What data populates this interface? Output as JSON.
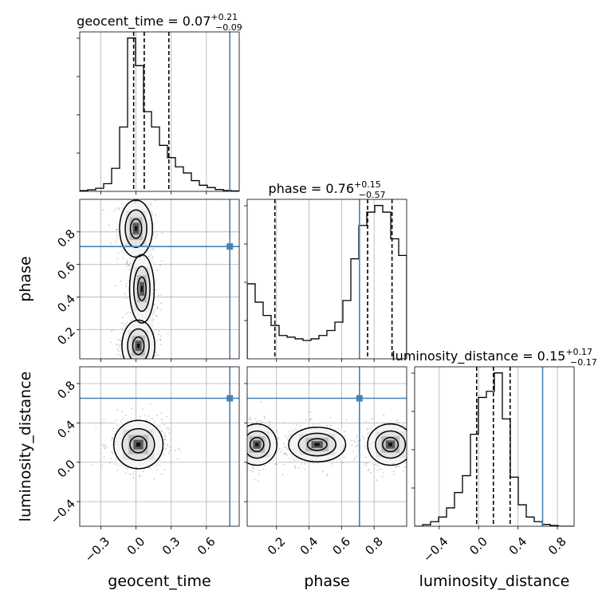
{
  "chart_data": {
    "type": "corner",
    "parameters": [
      "geocent_time",
      "phase",
      "luminosity_distance"
    ],
    "truths": {
      "geocent_time": 0.8,
      "phase": 0.71,
      "luminosity_distance": 0.65
    },
    "titles": {
      "geocent_time": {
        "name": "geocent_time",
        "median": "0.07",
        "plus": "+0.21",
        "minus": "−0.09"
      },
      "phase": {
        "name": "phase",
        "median": "0.76",
        "plus": "+0.15",
        "minus": "−0.57"
      },
      "luminosity_distance": {
        "name": "luminosity_distance",
        "median": "0.15",
        "plus": "+0.17",
        "minus": "−0.17"
      }
    },
    "axis_labels": {
      "x": [
        "geocent_time",
        "phase",
        "luminosity_distance"
      ],
      "y": [
        "phase",
        "luminosity_distance"
      ]
    },
    "ranges": {
      "geocent_time": [
        -0.48,
        0.88
      ],
      "phase": [
        0.02,
        1.0
      ],
      "luminosity_distance": [
        -0.65,
        0.97
      ]
    },
    "ticks": {
      "geocent_time": [
        "−0.3",
        "0.0",
        "0.3",
        "0.6"
      ],
      "phase": [
        "0.2",
        "0.4",
        "0.6",
        "0.8"
      ],
      "luminosity_distance": [
        "−0.4",
        "0.0",
        "0.4",
        "0.8"
      ]
    },
    "tick_values": {
      "geocent_time": [
        -0.3,
        0.0,
        0.3,
        0.6
      ],
      "phase": [
        0.2,
        0.4,
        0.6,
        0.8
      ],
      "luminosity_distance": [
        -0.4,
        0.0,
        0.4,
        0.8
      ]
    },
    "quantiles": {
      "geocent_time": [
        -0.02,
        0.07,
        0.28
      ],
      "phase": [
        0.19,
        0.76,
        0.91
      ],
      "luminosity_distance": [
        -0.02,
        0.15,
        0.32
      ]
    },
    "histograms": {
      "geocent_time": {
        "edges": [
          -0.48,
          -0.412,
          -0.344,
          -0.276,
          -0.208,
          -0.14,
          -0.072,
          -0.004,
          0.064,
          0.132,
          0.2,
          0.268,
          0.336,
          0.404,
          0.472,
          0.54,
          0.608,
          0.676,
          0.744,
          0.812,
          0.88
        ],
        "counts": [
          0.005,
          0.01,
          0.02,
          0.05,
          0.15,
          0.42,
          1.0,
          0.82,
          0.52,
          0.42,
          0.3,
          0.22,
          0.16,
          0.12,
          0.07,
          0.04,
          0.025,
          0.012,
          0.006,
          0.003
        ]
      },
      "phase": {
        "edges": [
          0.02,
          0.069,
          0.118,
          0.167,
          0.216,
          0.265,
          0.314,
          0.363,
          0.412,
          0.461,
          0.51,
          0.559,
          0.608,
          0.657,
          0.706,
          0.755,
          0.804,
          0.853,
          0.902,
          0.951,
          1.0
        ],
        "counts": [
          0.45,
          0.34,
          0.26,
          0.2,
          0.14,
          0.13,
          0.12,
          0.11,
          0.12,
          0.14,
          0.17,
          0.22,
          0.35,
          0.6,
          0.8,
          0.88,
          0.92,
          0.88,
          0.72,
          0.62
        ]
      },
      "luminosity_distance": {
        "edges": [
          -0.65,
          -0.569,
          -0.488,
          -0.407,
          -0.326,
          -0.245,
          -0.164,
          -0.083,
          -0.002,
          0.079,
          0.16,
          0.241,
          0.322,
          0.403,
          0.484,
          0.565,
          0.646,
          0.727,
          0.808,
          0.889,
          0.97
        ],
        "counts": [
          0.0,
          0.01,
          0.03,
          0.06,
          0.12,
          0.22,
          0.33,
          0.6,
          0.84,
          0.88,
          1.0,
          0.7,
          0.32,
          0.14,
          0.06,
          0.03,
          0.012,
          0.005,
          0.0,
          0.0
        ]
      }
    },
    "joint_modes": [
      {
        "x": "geocent_time",
        "y": "phase",
        "centers": [
          [
            0.0,
            0.82
          ],
          [
            0.0,
            0.08
          ]
        ]
      },
      {
        "x": "geocent_time",
        "y": "luminosity_distance",
        "centers": [
          [
            0.0,
            0.18
          ]
        ]
      },
      {
        "x": "phase",
        "y": "luminosity_distance",
        "centers": [
          [
            0.9,
            0.18
          ],
          [
            0.1,
            0.18
          ]
        ]
      }
    ],
    "colors": {
      "line": "#000000",
      "truth": "#4682b4",
      "grid": "#b0b0b0",
      "points": "#9a9a9a"
    },
    "grid": true
  }
}
